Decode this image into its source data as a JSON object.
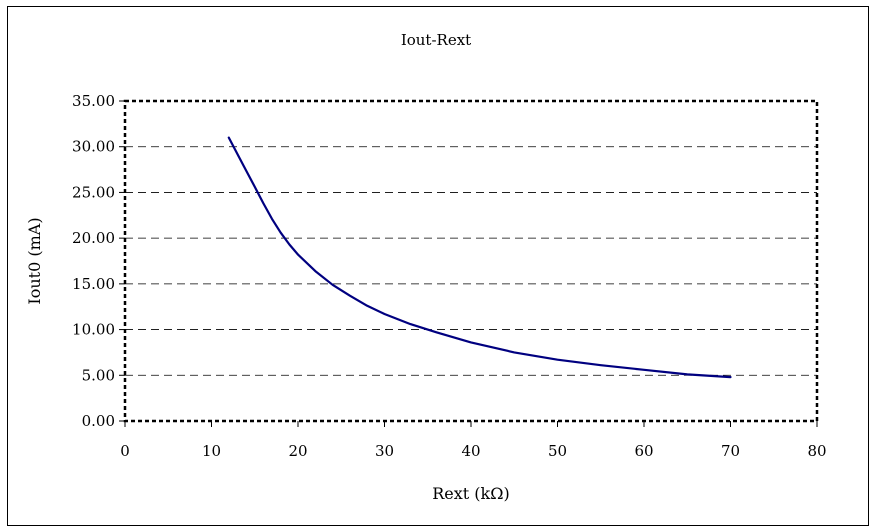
{
  "chart_data": {
    "type": "line",
    "title": "Iout-Rext",
    "xlabel": "Rext (kΩ)",
    "ylabel": "Iout0 (mA)",
    "xlim": [
      0,
      80
    ],
    "ylim": [
      0,
      35
    ],
    "xticks": [
      "0",
      "10",
      "20",
      "30",
      "40",
      "50",
      "60",
      "70",
      "80"
    ],
    "yticks": [
      "0.00",
      "5.00",
      "10.00",
      "15.00",
      "20.00",
      "25.00",
      "30.00",
      "35.00"
    ],
    "grid": "horizontal dashed",
    "series": [
      {
        "color": "#000080",
        "x": [
          12,
          13,
          14,
          15,
          16,
          17,
          18,
          19,
          20,
          22,
          24,
          26,
          28,
          30,
          33,
          36,
          40,
          45,
          50,
          55,
          60,
          65,
          70
        ],
        "y": [
          31.0,
          29.2,
          27.4,
          25.6,
          23.8,
          22.1,
          20.6,
          19.3,
          18.2,
          16.4,
          14.9,
          13.7,
          12.6,
          11.7,
          10.6,
          9.7,
          8.6,
          7.5,
          6.7,
          6.1,
          5.6,
          5.1,
          4.8
        ]
      }
    ]
  }
}
